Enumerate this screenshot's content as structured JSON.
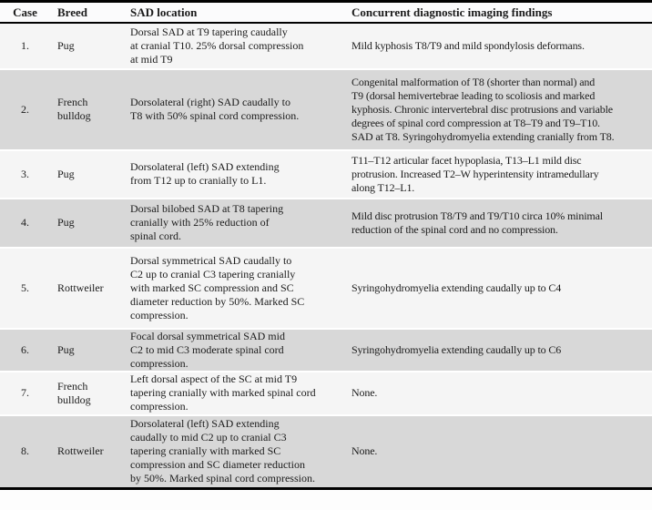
{
  "table": {
    "headers": [
      "Case",
      "Breed",
      "SAD location",
      "Concurrent diagnostic imaging findings"
    ],
    "rows": [
      {
        "case": "1.",
        "breed": "Pug",
        "sad_location": "Dorsal SAD at T9 tapering caudally\nat cranial T10. 25% dorsal compression\nat mid T9",
        "findings": "Mild kyphosis T8/T9 and mild spondylosis deformans."
      },
      {
        "case": "2.",
        "breed": "French\nbulldog",
        "sad_location": "Dorsolateral (right) SAD caudally to\nT8 with 50% spinal cord compression.",
        "findings": "Congenital malformation of T8 (shorter than normal) and\nT9 (dorsal hemivertebrae leading to scoliosis and marked\nkyphosis. Chronic intervertebral disc protrusions and variable\ndegrees of spinal cord compression at T8–T9 and T9–T10.\nSAD at T8. Syringohydromyelia extending cranially from T8."
      },
      {
        "case": "3.",
        "breed": "Pug",
        "sad_location": "Dorsolateral (left) SAD extending\nfrom T12 up to cranially to L1.",
        "findings": "T11–T12 articular facet hypoplasia, T13–L1 mild disc\nprotrusion. Increased T2–W hyperintensity intramedullary\nalong T12–L1."
      },
      {
        "case": "4.",
        "breed": "Pug",
        "sad_location": "Dorsal bilobed SAD at T8 tapering\ncranially with 25% reduction of\nspinal cord.",
        "findings": "Mild disc protrusion T8/T9 and T9/T10 circa 10% minimal\nreduction of the spinal cord and no compression."
      },
      {
        "case": "5.",
        "breed": "Rottweiler",
        "sad_location": "Dorsal symmetrical SAD caudally to\nC2 up to cranial C3 tapering cranially\nwith marked SC compression and SC\ndiameter reduction by 50%. Marked SC\ncompression.",
        "findings": "Syringohydromyelia extending caudally up to C4"
      },
      {
        "case": "6.",
        "breed": "Pug",
        "sad_location": "Focal dorsal symmetrical SAD mid\nC2 to mid C3 moderate spinal cord\ncompression.",
        "findings": "Syringohydromyelia extending caudally up to C6"
      },
      {
        "case": "7.",
        "breed": "French\nbulldog",
        "sad_location": "Left dorsal aspect of the SC at mid T9\ntapering cranially with marked spinal cord\ncompression.",
        "findings": "None."
      },
      {
        "case": "8.",
        "breed": "Rottweiler",
        "sad_location": "Dorsolateral (left) SAD extending\ncaudally to mid C2 up to cranial C3\ntapering cranially with marked SC\ncompression and SC diameter reduction\nby 50%. Marked spinal cord compression.",
        "findings": "None."
      }
    ]
  },
  "colors": {
    "row_stripe": "#d8d8d8",
    "row_base": "#f5f5f5",
    "rule": "#010101",
    "text": "#1b1b1b"
  }
}
